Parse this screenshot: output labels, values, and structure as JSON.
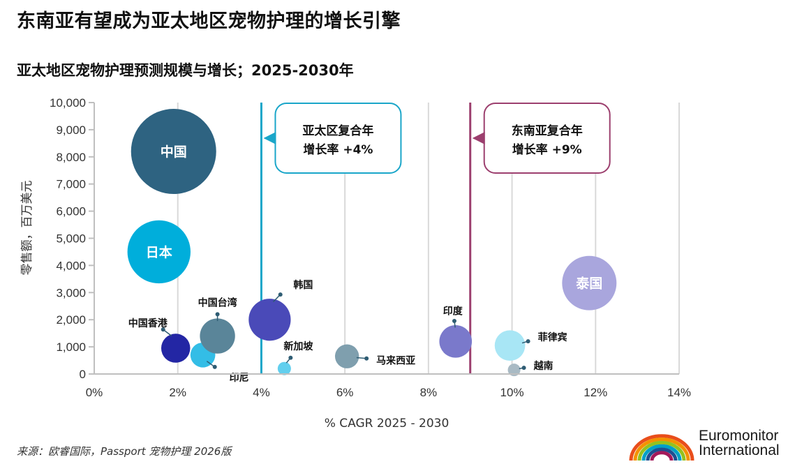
{
  "title": "东南亚有望成为亚太地区宠物护理的增长引擎",
  "subtitle": "亚太地区宠物护理预测规模与增长；2025-2030年",
  "source": "来源：欧睿国际，Passport 宠物护理 2026版",
  "brand": {
    "name_line1": "Euromonitor",
    "name_line2": "International",
    "arc_colors": [
      "#e94e1b",
      "#f39200",
      "#95c11f",
      "#00a0c6",
      "#1d4f91",
      "#a3195b"
    ]
  },
  "chart_data": {
    "type": "scatter",
    "subtype": "bubble",
    "xlabel": "% CAGR 2025 - 2030",
    "ylabel": "零售额，百万美元",
    "xlim": [
      0,
      14
    ],
    "ylim": [
      0,
      10000
    ],
    "x_ticks": [
      "0%",
      "2%",
      "4%",
      "6%",
      "8%",
      "10%",
      "12%",
      "14%"
    ],
    "y_ticks": [
      "0",
      "1,000",
      "2,000",
      "3,000",
      "4,000",
      "5,000",
      "6,000",
      "7,000",
      "8,000",
      "9,000",
      "10,000"
    ],
    "grid": "vertical",
    "points": [
      {
        "label": "中国",
        "x": 1.9,
        "y": 8200,
        "size": 8200,
        "color": "#2e6381",
        "label_inside": true
      },
      {
        "label": "日本",
        "x": 1.55,
        "y": 4500,
        "size": 4500,
        "color": "#00aedb",
        "label_inside": true
      },
      {
        "label": "中国香港",
        "x": 1.95,
        "y": 950,
        "size": 950,
        "color": "#2326a4",
        "label_inside": false
      },
      {
        "label": "印尼",
        "x": 2.6,
        "y": 700,
        "size": 700,
        "color": "#33bde6",
        "label_inside": false
      },
      {
        "label": "中国台湾",
        "x": 2.95,
        "y": 1400,
        "size": 1400,
        "color": "#5a8599",
        "label_inside": false
      },
      {
        "label": "韩国",
        "x": 4.2,
        "y": 2000,
        "size": 2000,
        "color": "#4a4ab8",
        "label_inside": false
      },
      {
        "label": "新加坡",
        "x": 4.55,
        "y": 200,
        "size": 200,
        "color": "#62cfee",
        "label_inside": false
      },
      {
        "label": "马来西亚",
        "x": 6.05,
        "y": 650,
        "size": 650,
        "color": "#7f9fae",
        "label_inside": false
      },
      {
        "label": "印度",
        "x": 8.65,
        "y": 1200,
        "size": 1200,
        "color": "#7a79cb",
        "label_inside": false
      },
      {
        "label": "菲律宾",
        "x": 9.95,
        "y": 1050,
        "size": 1050,
        "color": "#a8e6f5",
        "label_inside": false
      },
      {
        "label": "越南",
        "x": 10.05,
        "y": 150,
        "size": 150,
        "color": "#a9bac4",
        "label_inside": false
      },
      {
        "label": "泰国",
        "x": 11.85,
        "y": 3350,
        "size": 3350,
        "color": "#a9a6dd",
        "label_inside": true
      }
    ],
    "reference_lines": [
      {
        "x": 4,
        "color": "#1aa6c9",
        "label_line1": "亚太区复合年",
        "label_line2": "增长率 +4%"
      },
      {
        "x": 9,
        "color": "#9c3f6e",
        "label_line1": "东南亚复合年",
        "label_line2": "增长率 +9%"
      }
    ]
  }
}
